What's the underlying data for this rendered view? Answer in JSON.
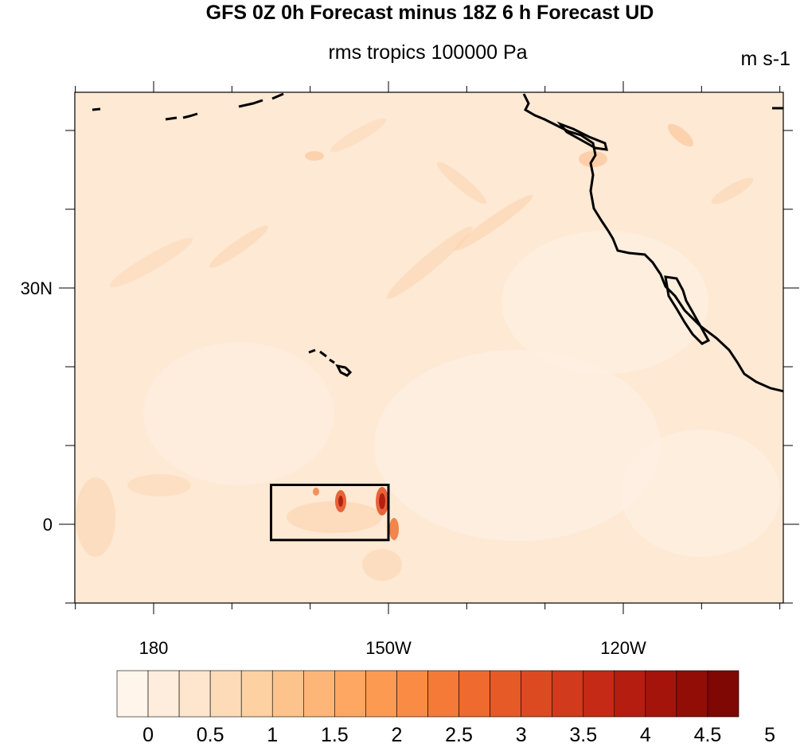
{
  "title": "GFS 0Z 0h Forecast minus 18Z 6 h Forecast UD",
  "subtitle": "rms tropics 100000 Pa",
  "units": "m s-1",
  "map": {
    "lon_ticks": [
      {
        "lon": -180,
        "label": "180"
      },
      {
        "lon": -150,
        "label": "150W"
      },
      {
        "lon": -120,
        "label": "120W"
      }
    ],
    "lat_ticks": [
      {
        "lat": 30,
        "label": "30N"
      },
      {
        "lat": 0,
        "label": "0"
      }
    ],
    "highlight_box": {
      "lon_min": -165,
      "lon_max": -150,
      "lat_min": -2,
      "lat_max": 5
    }
  },
  "colorbar": {
    "labels": [
      "0",
      "0.5",
      "1",
      "1.5",
      "2",
      "2.5",
      "3",
      "3.5",
      "4",
      "4.5",
      "5"
    ],
    "colors": [
      "#fff5eb",
      "#feeddc",
      "#fee6ce",
      "#fddbb8",
      "#fdd1a2",
      "#fdc38d",
      "#fdb678",
      "#fda762",
      "#fd9a52",
      "#fa8b45",
      "#f57a38",
      "#ef6a2e",
      "#e65a28",
      "#dc4a22",
      "#d13a1c",
      "#c42a16",
      "#b51d11",
      "#a5140b",
      "#930d07",
      "#7f0704"
    ]
  }
}
